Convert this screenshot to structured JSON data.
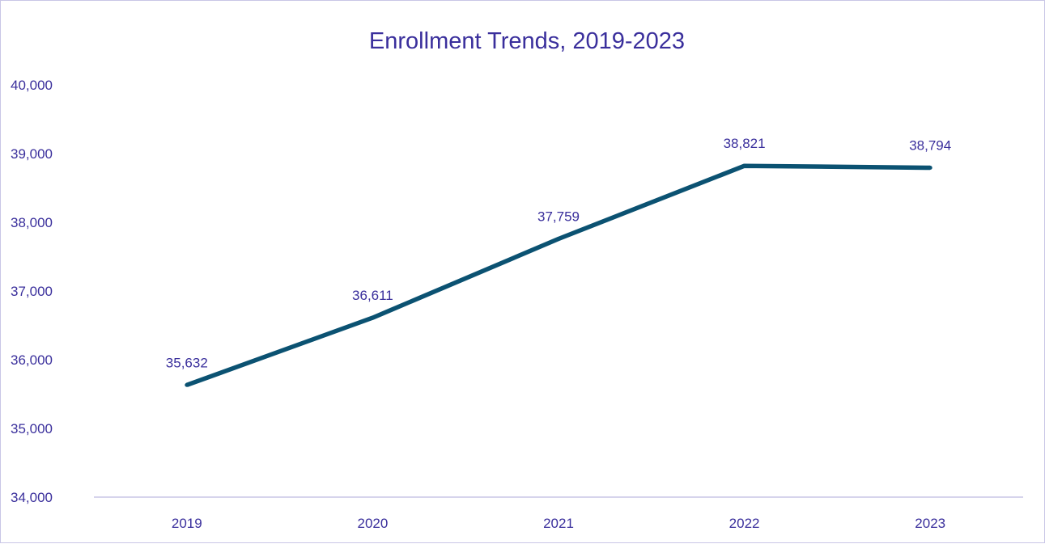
{
  "chart_data": {
    "type": "line",
    "title": "Enrollment Trends, 2019-2023",
    "xlabel": "",
    "ylabel": "",
    "categories": [
      "2019",
      "2020",
      "2021",
      "2022",
      "2023"
    ],
    "values": [
      35632,
      36611,
      37759,
      38821,
      38794
    ],
    "data_labels": [
      "35,632",
      "36,611",
      "37,759",
      "38,821",
      "38,794"
    ],
    "ylim": [
      34000,
      40000
    ],
    "y_ticks": [
      34000,
      35000,
      36000,
      37000,
      38000,
      39000,
      40000
    ],
    "y_tick_labels": [
      "34,000",
      "35,000",
      "36,000",
      "37,000",
      "38,000",
      "39,000",
      "40,000"
    ],
    "grid": false,
    "legend": "none",
    "colors": {
      "line": "#0b5272",
      "text": "#3a2f9c",
      "axis": "#c9c6e6"
    }
  }
}
